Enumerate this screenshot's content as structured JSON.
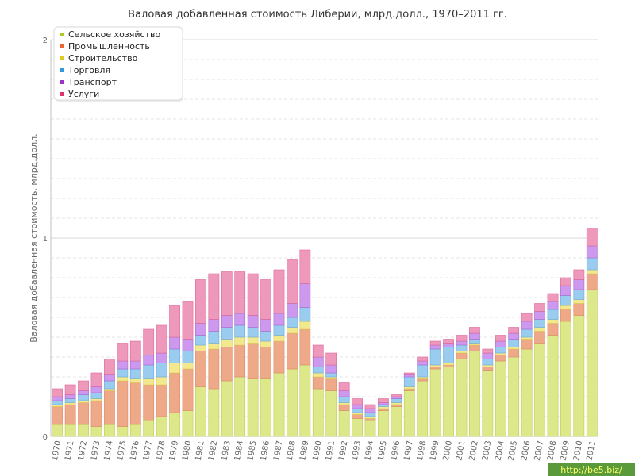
{
  "chart_data": {
    "type": "bar",
    "stacked": true,
    "title": "Валовая добавленная стоимость Либерии, млрд.долл., 1970–2011 гг.",
    "ylabel": "Валовая добавленная стоимость, млрд.долл.",
    "xlabel": "",
    "ylim": [
      0,
      2
    ],
    "yticks": [
      "0",
      "1",
      "2"
    ],
    "grid": true,
    "legend_position": "top-left",
    "categories": [
      "1970",
      "1971",
      "1972",
      "1973",
      "1974",
      "1975",
      "1976",
      "1977",
      "1978",
      "1979",
      "1980",
      "1981",
      "1982",
      "1983",
      "1984",
      "1985",
      "1986",
      "1987",
      "1988",
      "1989",
      "1990",
      "1991",
      "1992",
      "1993",
      "1994",
      "1995",
      "1996",
      "1997",
      "1998",
      "1999",
      "2000",
      "2001",
      "2002",
      "2003",
      "2004",
      "2005",
      "2006",
      "2007",
      "2008",
      "2009",
      "2010",
      "2011"
    ],
    "series": [
      {
        "name": "Сельское хозяйство",
        "color": "#dde88a",
        "values": [
          0.06,
          0.06,
          0.06,
          0.05,
          0.06,
          0.05,
          0.06,
          0.08,
          0.1,
          0.12,
          0.13,
          0.25,
          0.24,
          0.28,
          0.3,
          0.29,
          0.29,
          0.32,
          0.34,
          0.36,
          0.24,
          0.23,
          0.13,
          0.09,
          0.08,
          0.13,
          0.15,
          0.23,
          0.28,
          0.34,
          0.35,
          0.39,
          0.43,
          0.33,
          0.38,
          0.4,
          0.44,
          0.47,
          0.51,
          0.58,
          0.61,
          0.74
        ]
      },
      {
        "name": "Промышленность",
        "color": "#eeaa88",
        "values": [
          0.09,
          0.1,
          0.11,
          0.13,
          0.17,
          0.23,
          0.21,
          0.18,
          0.16,
          0.2,
          0.21,
          0.18,
          0.2,
          0.17,
          0.16,
          0.18,
          0.16,
          0.16,
          0.18,
          0.18,
          0.06,
          0.06,
          0.03,
          0.02,
          0.01,
          0.01,
          0.01,
          0.01,
          0.01,
          0.01,
          0.01,
          0.03,
          0.03,
          0.02,
          0.03,
          0.04,
          0.05,
          0.06,
          0.06,
          0.06,
          0.06,
          0.08
        ]
      },
      {
        "name": "Строительство",
        "color": "#f2e88e",
        "values": [
          0.01,
          0.01,
          0.01,
          0.01,
          0.01,
          0.02,
          0.02,
          0.03,
          0.04,
          0.05,
          0.03,
          0.03,
          0.03,
          0.04,
          0.04,
          0.03,
          0.03,
          0.03,
          0.03,
          0.04,
          0.02,
          0.01,
          0.01,
          0.01,
          0.01,
          0.01,
          0.01,
          0.01,
          0.01,
          0.01,
          0.01,
          0.01,
          0.01,
          0.01,
          0.01,
          0.01,
          0.01,
          0.02,
          0.02,
          0.02,
          0.02,
          0.02
        ]
      },
      {
        "name": "Торговля",
        "color": "#99ccee",
        "values": [
          0.02,
          0.02,
          0.03,
          0.03,
          0.04,
          0.04,
          0.05,
          0.07,
          0.07,
          0.07,
          0.06,
          0.05,
          0.06,
          0.06,
          0.06,
          0.05,
          0.05,
          0.05,
          0.05,
          0.07,
          0.03,
          0.02,
          0.03,
          0.02,
          0.02,
          0.01,
          0.02,
          0.05,
          0.06,
          0.08,
          0.08,
          0.03,
          0.02,
          0.03,
          0.03,
          0.04,
          0.04,
          0.04,
          0.05,
          0.05,
          0.05,
          0.06
        ]
      },
      {
        "name": "Транспорт",
        "color": "#cc99ee",
        "values": [
          0.02,
          0.02,
          0.02,
          0.03,
          0.03,
          0.04,
          0.04,
          0.05,
          0.05,
          0.06,
          0.06,
          0.06,
          0.06,
          0.06,
          0.06,
          0.06,
          0.06,
          0.06,
          0.07,
          0.12,
          0.05,
          0.04,
          0.03,
          0.02,
          0.02,
          0.01,
          0.01,
          0.01,
          0.02,
          0.02,
          0.02,
          0.02,
          0.03,
          0.03,
          0.03,
          0.03,
          0.04,
          0.04,
          0.04,
          0.05,
          0.05,
          0.06
        ]
      },
      {
        "name": "Услуги",
        "color": "#ee99bb",
        "values": [
          0.04,
          0.05,
          0.05,
          0.07,
          0.08,
          0.09,
          0.1,
          0.13,
          0.14,
          0.16,
          0.19,
          0.22,
          0.23,
          0.22,
          0.21,
          0.21,
          0.2,
          0.22,
          0.22,
          0.17,
          0.06,
          0.06,
          0.04,
          0.03,
          0.02,
          0.02,
          0.01,
          0.01,
          0.02,
          0.02,
          0.02,
          0.03,
          0.03,
          0.02,
          0.03,
          0.03,
          0.04,
          0.04,
          0.04,
          0.04,
          0.05,
          0.09
        ]
      }
    ],
    "legend_marker_colors": [
      "#aacc22",
      "#ee6633",
      "#ddcc22",
      "#3399dd",
      "#9933cc",
      "#dd3366"
    ],
    "edge_colors": [
      "#bbcc55",
      "#dd8866",
      "#ddcc55",
      "#66aadd",
      "#aa66cc",
      "#dd6699"
    ],
    "grid_color": "#e6e6e6",
    "axis_color": "#c0c0c0"
  },
  "watermark": "http://be5.biz/"
}
